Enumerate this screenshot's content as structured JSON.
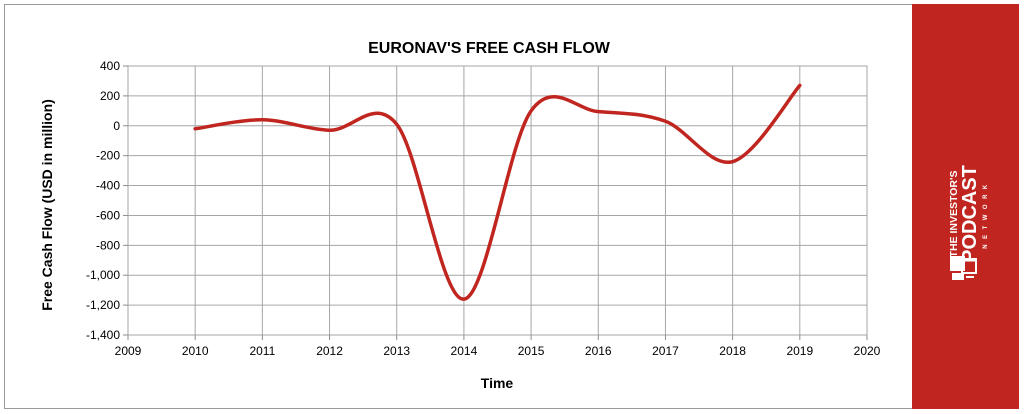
{
  "chart_data": {
    "type": "line",
    "title": "EURONAV'S FREE CASH FLOW",
    "xlabel": "Time",
    "ylabel": "Free Cash Flow (USD in million)",
    "xlim": [
      2009,
      2020
    ],
    "ylim": [
      -1400,
      400
    ],
    "x_ticks": [
      "2009",
      "2010",
      "2011",
      "2012",
      "2013",
      "2014",
      "2015",
      "2016",
      "2017",
      "2018",
      "2019",
      "2020"
    ],
    "y_ticks": [
      "400",
      "200",
      "0",
      "-200",
      "-400",
      "-600",
      "-800",
      "-1,000",
      "-1,200",
      "-1,400"
    ],
    "grid": true,
    "legend": "none",
    "series": [
      {
        "color": "#c0261f",
        "points": [
          {
            "x": 2010,
            "y": -20
          },
          {
            "x": 2011,
            "y": 40
          },
          {
            "x": 2012,
            "y": -30
          },
          {
            "x": 2013,
            "y": 10
          },
          {
            "x": 2014,
            "y": -1160
          },
          {
            "x": 2015,
            "y": 100
          },
          {
            "x": 2016,
            "y": 95
          },
          {
            "x": 2017,
            "y": 30
          },
          {
            "x": 2018,
            "y": -240
          },
          {
            "x": 2019,
            "y": 270
          }
        ]
      }
    ]
  },
  "brand": {
    "line1": "THE INVESTOR'S",
    "line2": "PODCAST",
    "line3": "NETWORK",
    "logo_icon": "podcast-network-logo-icon",
    "panel_color": "#c0261f"
  }
}
